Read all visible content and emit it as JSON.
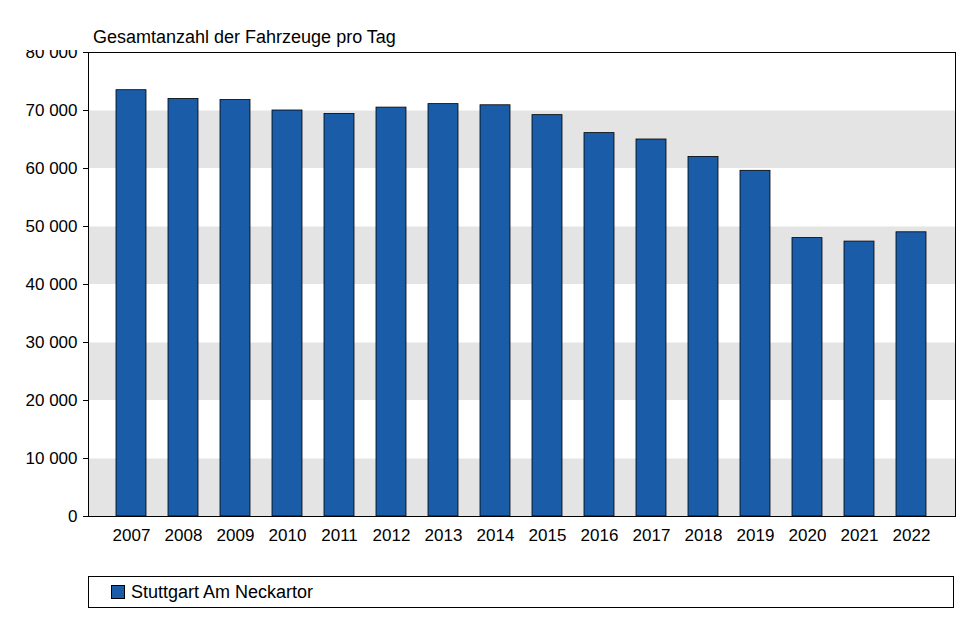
{
  "chart_data": {
    "type": "bar",
    "title": "Gesamtanzahl der Fahrzeuge pro Tag",
    "categories": [
      "2007",
      "2008",
      "2009",
      "2010",
      "2011",
      "2012",
      "2013",
      "2014",
      "2015",
      "2016",
      "2017",
      "2018",
      "2019",
      "2020",
      "2021",
      "2022"
    ],
    "series": [
      {
        "name": "Stuttgart Am Neckartor",
        "color": "#1a5ca8",
        "values": [
          73500,
          72000,
          71800,
          70000,
          69400,
          70500,
          71100,
          70900,
          69200,
          66100,
          65000,
          62000,
          59600,
          48000,
          47400,
          49000
        ]
      }
    ],
    "ylim": [
      0,
      80000
    ],
    "yticks": [
      0,
      {
        "value": 10000,
        "label": "10 000"
      },
      {
        "value": 20000,
        "label": "20 000"
      },
      {
        "value": 30000,
        "label": "30 000"
      },
      {
        "value": 40000,
        "label": "40 000"
      },
      {
        "value": 50000,
        "label": "50 000"
      },
      {
        "value": 60000,
        "label": "60 000"
      },
      {
        "value": 70000,
        "label": "70 000"
      },
      {
        "value": 80000,
        "label": "80 000"
      }
    ],
    "grid": true,
    "legend": "bottom"
  }
}
